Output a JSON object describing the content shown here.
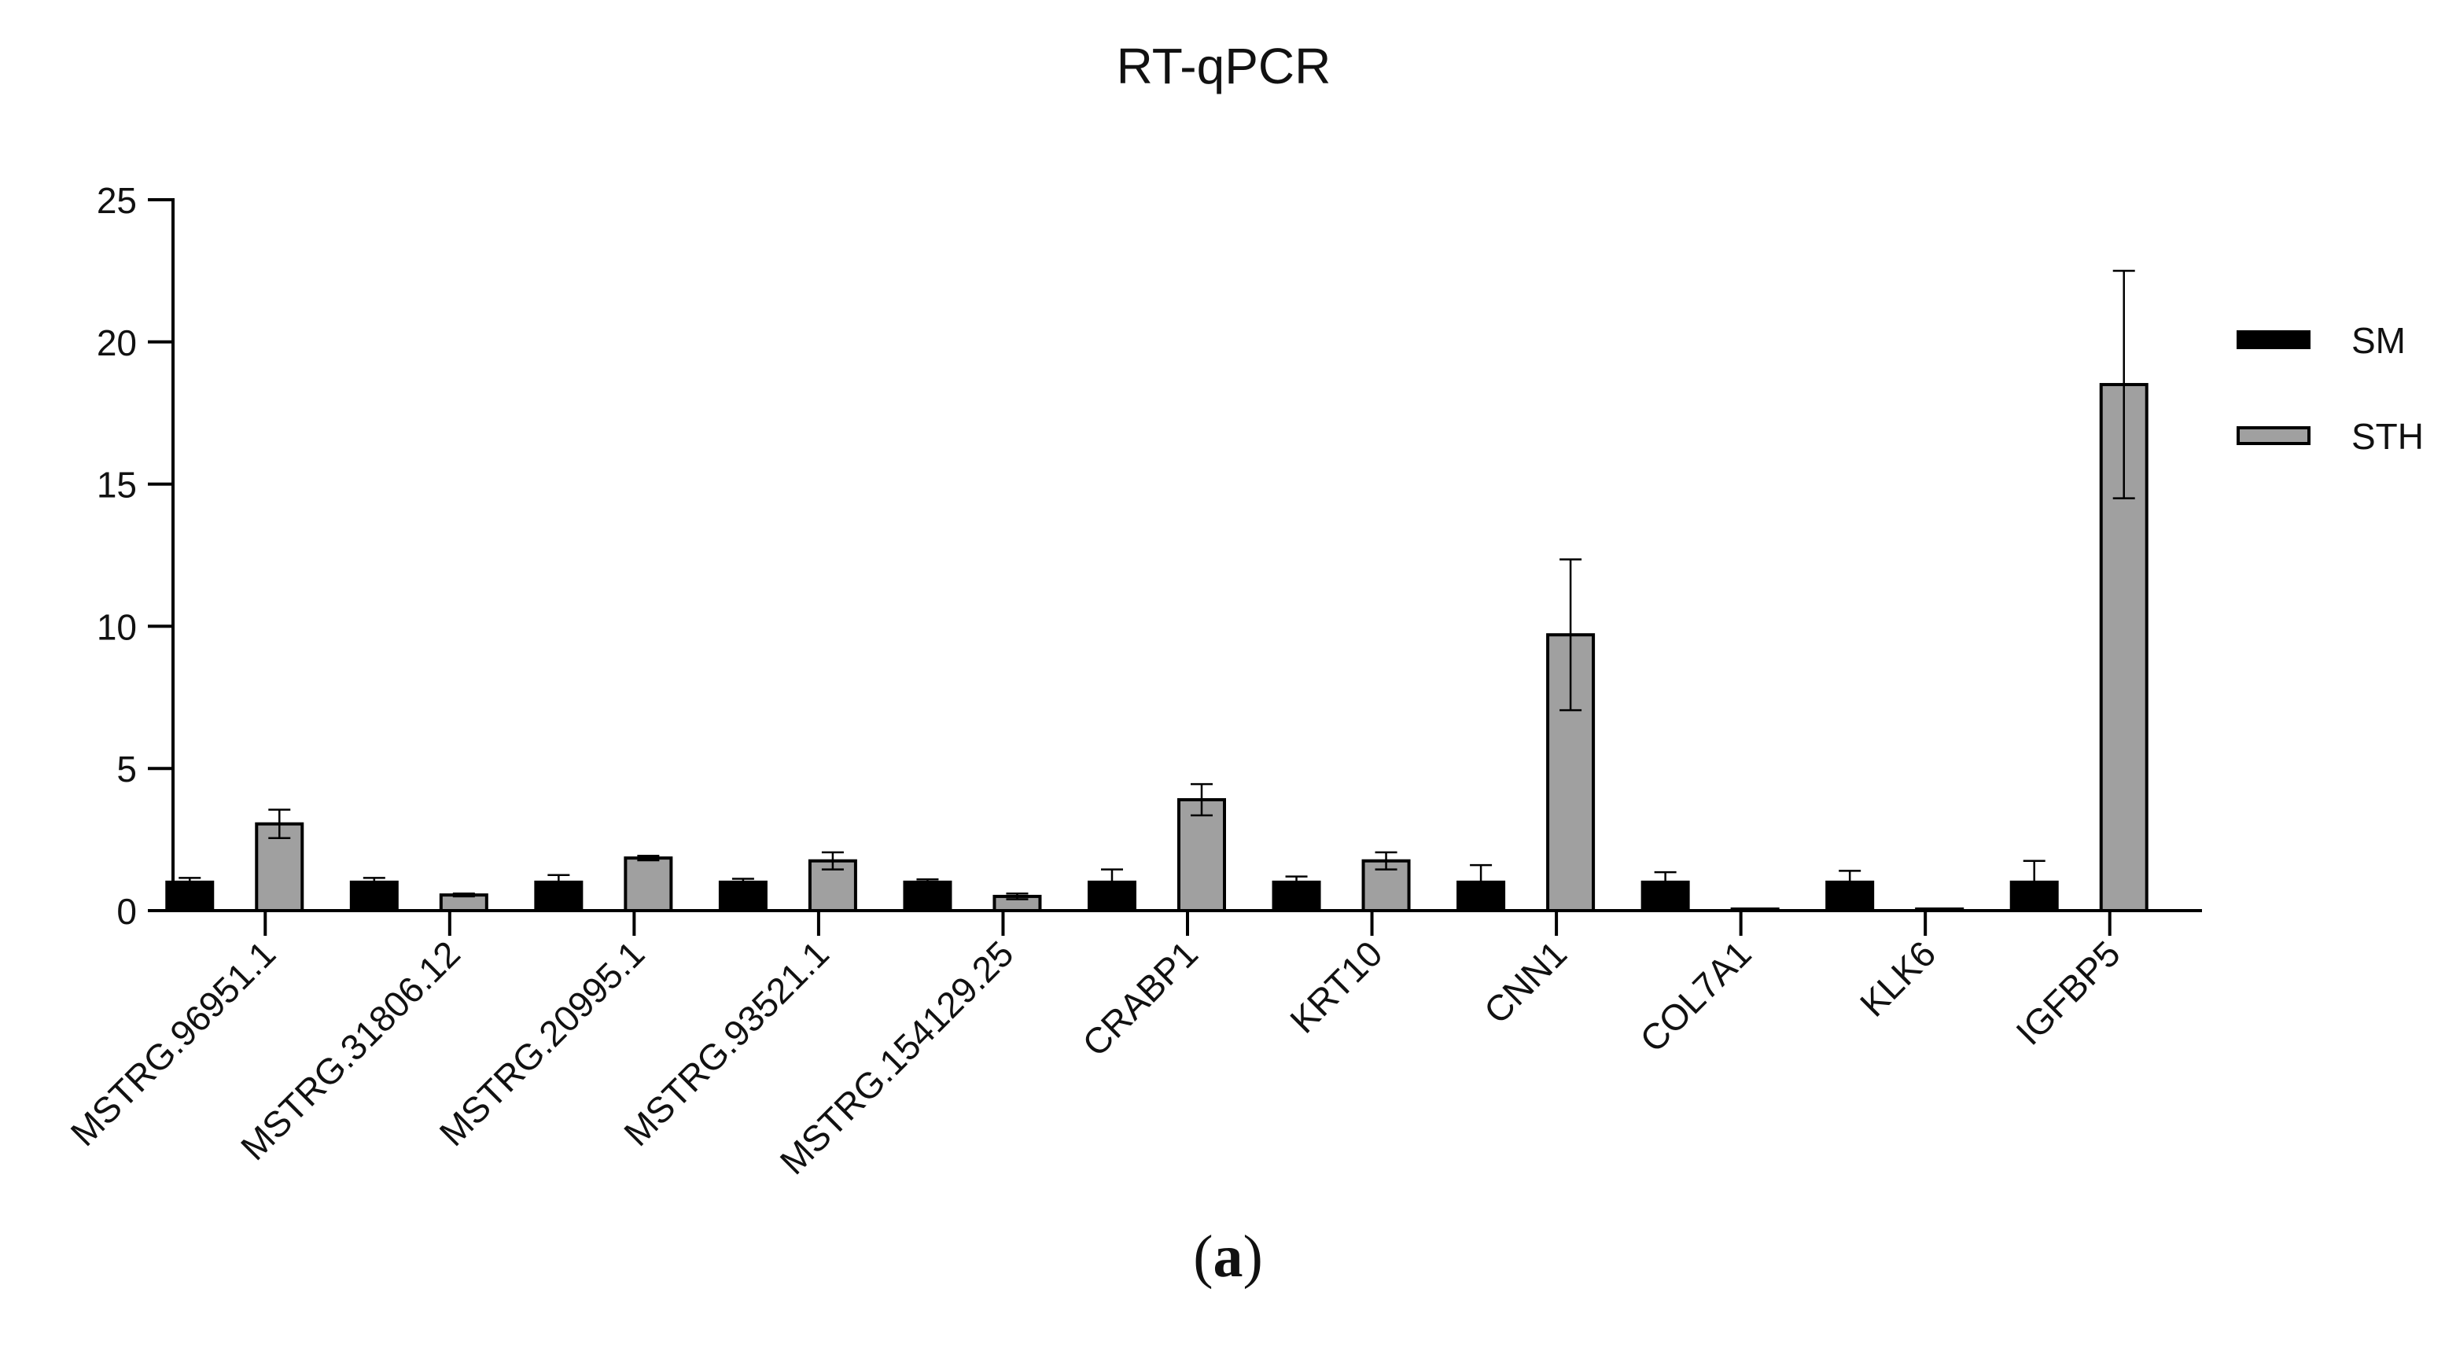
{
  "chart_data": {
    "type": "bar",
    "title": "RT-qPCR",
    "xlabel": "",
    "ylabel": "",
    "ylim": [
      0,
      25
    ],
    "yticks": [
      0,
      5,
      10,
      15,
      20,
      25
    ],
    "categories": [
      "MSTRG.96951.1",
      "MSTRG.31806.12",
      "MSTRG.20995.1",
      "MSTRG.93521.1",
      "MSTRG.154129.25",
      "CRABP1",
      "KRT10",
      "CNN1",
      "COL7A1",
      "KLK6",
      "IGFBP5"
    ],
    "series": [
      {
        "name": "SM",
        "color": "#000000",
        "values": [
          1.0,
          1.0,
          1.0,
          1.0,
          1.0,
          1.0,
          1.0,
          1.0,
          1.0,
          1.0,
          1.0
        ],
        "errors": [
          0.15,
          0.15,
          0.25,
          0.12,
          0.1,
          0.45,
          0.2,
          0.6,
          0.35,
          0.4,
          0.75
        ]
      },
      {
        "name": "STH",
        "color": "#a0a0a0",
        "values": [
          3.05,
          0.55,
          1.85,
          1.75,
          0.5,
          3.9,
          1.75,
          9.7,
          0.05,
          0.02,
          18.5
        ],
        "errors": [
          0.5,
          0.05,
          0.08,
          0.3,
          0.1,
          0.55,
          0.3,
          2.65,
          0.01,
          0.01,
          4.0
        ]
      }
    ],
    "legend": "right",
    "grid": false
  },
  "panel": {
    "label": "a"
  }
}
